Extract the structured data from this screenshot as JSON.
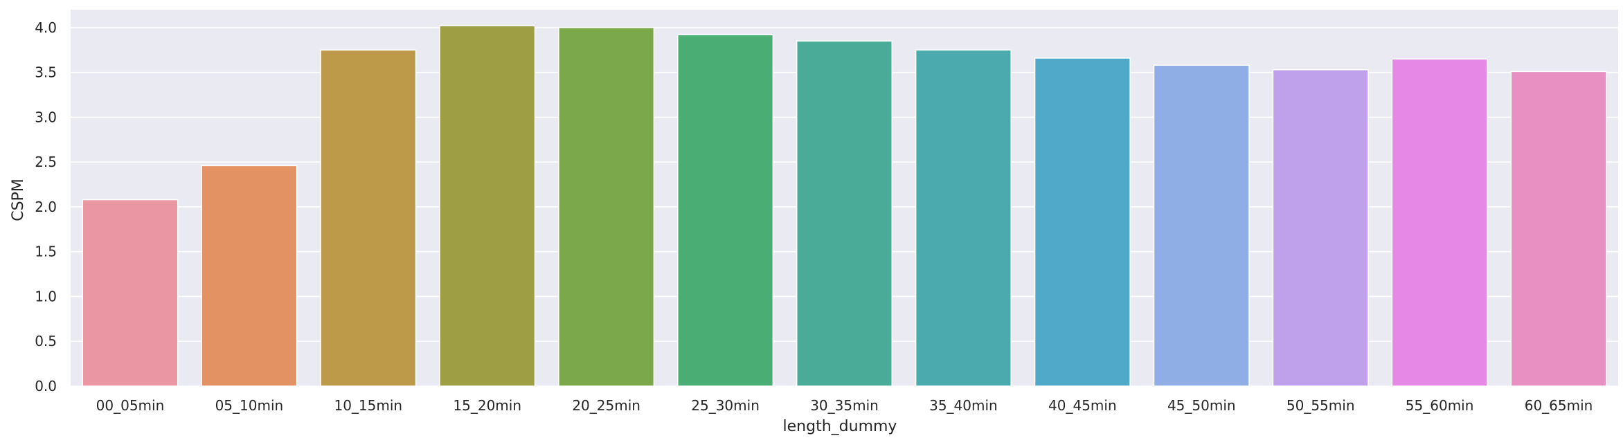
{
  "chart_data": {
    "type": "bar",
    "title": "",
    "xlabel": "length_dummy",
    "ylabel": "CSPM",
    "ylim": [
      0,
      4.2
    ],
    "yticks": [
      "0.0",
      "0.5",
      "1.0",
      "1.5",
      "2.0",
      "2.5",
      "3.0",
      "3.5",
      "4.0"
    ],
    "grid": true,
    "legend": "none",
    "background_color": "#eaeaf2",
    "categories": [
      "00_05min",
      "05_10min",
      "10_15min",
      "15_20min",
      "20_25min",
      "25_30min",
      "30_35min",
      "35_40min",
      "40_45min",
      "45_50min",
      "50_55min",
      "55_60min",
      "60_65min"
    ],
    "values": [
      2.08,
      2.46,
      3.75,
      4.02,
      4.0,
      3.92,
      3.85,
      3.75,
      3.66,
      3.58,
      3.53,
      3.65,
      3.51
    ],
    "colors": [
      "#ea96a3",
      "#e39264",
      "#bd9a4a",
      "#9e9e44",
      "#7aa84a",
      "#4aad73",
      "#4aab99",
      "#4aaaad",
      "#51a9c9",
      "#8faee5",
      "#bea1ea",
      "#e588e6",
      "#e790c1"
    ]
  }
}
